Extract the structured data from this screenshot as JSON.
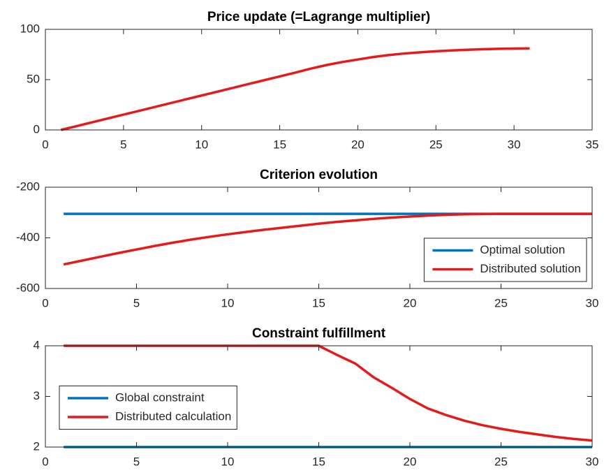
{
  "chart_data": [
    {
      "type": "line",
      "title": "Price update (=Lagrange multiplier)",
      "x": [
        1,
        2,
        3,
        4,
        5,
        6,
        7,
        8,
        9,
        10,
        11,
        12,
        13,
        14,
        15,
        16,
        17,
        18,
        19,
        20,
        21,
        22,
        23,
        24,
        25,
        26,
        27,
        28,
        29,
        30,
        31
      ],
      "series": [
        {
          "name": null,
          "color": "#e41a1c",
          "values": [
            0,
            3.8,
            7.6,
            11.4,
            15.2,
            19,
            22.8,
            26.6,
            30.4,
            34.2,
            38,
            41.8,
            45.6,
            49.4,
            53.2,
            57,
            61,
            64.5,
            67.5,
            70,
            72.5,
            74.5,
            76,
            77.2,
            78.2,
            79,
            79.7,
            80.2,
            80.6,
            80.9,
            81.1
          ]
        }
      ],
      "xlim": [
        0,
        35
      ],
      "xticks": [
        0,
        5,
        10,
        15,
        20,
        25,
        30,
        35
      ],
      "ylim": [
        0,
        100
      ],
      "yticks": [
        0,
        50,
        100
      ]
    },
    {
      "type": "line",
      "title": "Criterion evolution",
      "x": [
        1,
        2,
        3,
        4,
        5,
        6,
        7,
        8,
        9,
        10,
        11,
        12,
        13,
        14,
        15,
        16,
        17,
        18,
        19,
        20,
        21,
        22,
        23,
        24,
        25,
        26,
        27,
        28,
        29,
        30
      ],
      "series": [
        {
          "name": "Optimal solution",
          "color": "#0072bd",
          "values": [
            -305,
            -305,
            -305,
            -305,
            -305,
            -305,
            -305,
            -305,
            -305,
            -305,
            -305,
            -305,
            -305,
            -305,
            -305,
            -305,
            -305,
            -305,
            -305,
            -305,
            -305,
            -305,
            -305,
            -305,
            -305,
            -305,
            -305,
            -305,
            -305,
            -305
          ]
        },
        {
          "name": "Distributed solution",
          "color": "#e41a1c",
          "values": [
            -505,
            -490,
            -475,
            -460,
            -446,
            -432,
            -419,
            -407,
            -396,
            -386,
            -377,
            -368,
            -360,
            -352,
            -344,
            -337,
            -331,
            -325,
            -320,
            -316,
            -312,
            -309,
            -307,
            -306,
            -305,
            -305,
            -305,
            -305,
            -305,
            -305
          ]
        }
      ],
      "xlim": [
        0,
        30
      ],
      "xticks": [
        0,
        5,
        10,
        15,
        20,
        25,
        30
      ],
      "ylim": [
        -600,
        -200
      ],
      "yticks": [
        -600,
        -400,
        -200
      ],
      "legend": "lower right"
    },
    {
      "type": "line",
      "title": "Constraint fulfillment",
      "x": [
        1,
        2,
        3,
        4,
        5,
        6,
        7,
        8,
        9,
        10,
        11,
        12,
        13,
        14,
        15,
        16,
        17,
        18,
        19,
        20,
        21,
        22,
        23,
        24,
        25,
        26,
        27,
        28,
        29,
        30
      ],
      "series": [
        {
          "name": "Global constraint",
          "color": "#0072bd",
          "values": [
            2,
            2,
            2,
            2,
            2,
            2,
            2,
            2,
            2,
            2,
            2,
            2,
            2,
            2,
            2,
            2,
            2,
            2,
            2,
            2,
            2,
            2,
            2,
            2,
            2,
            2,
            2,
            2,
            2,
            2
          ]
        },
        {
          "name": "Distributed calculation",
          "color": "#e41a1c",
          "values": [
            4,
            4,
            4,
            4,
            4,
            4,
            4,
            4,
            4,
            4,
            4,
            4,
            4,
            4,
            4,
            3.82,
            3.65,
            3.38,
            3.17,
            2.95,
            2.76,
            2.63,
            2.52,
            2.43,
            2.36,
            2.3,
            2.25,
            2.2,
            2.16,
            2.13
          ]
        }
      ],
      "xlim": [
        0,
        30
      ],
      "xticks": [
        0,
        5,
        10,
        15,
        20,
        25,
        30
      ],
      "ylim": [
        2,
        4
      ],
      "yticks": [
        2,
        3,
        4
      ],
      "legend": "center left"
    }
  ]
}
